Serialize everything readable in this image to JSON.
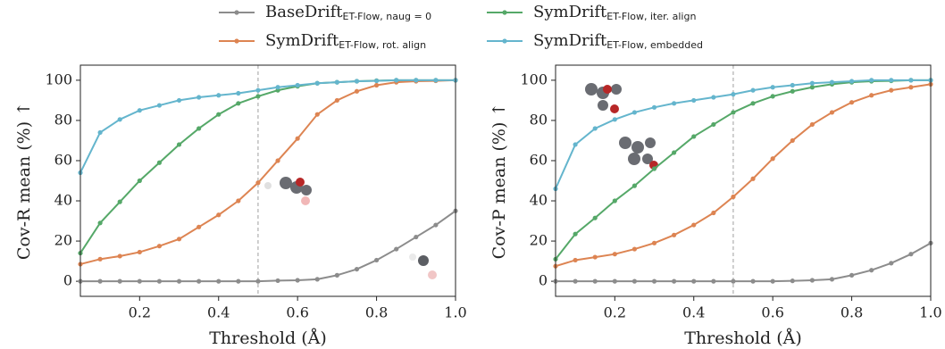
{
  "chart_data": [
    {
      "type": "line",
      "xlabel": "Threshold (Å)",
      "ylabel": "Cov-R mean (%) ↑",
      "x": [
        0.05,
        0.1,
        0.15,
        0.2,
        0.25,
        0.3,
        0.35,
        0.4,
        0.45,
        0.5,
        0.55,
        0.6,
        0.65,
        0.7,
        0.75,
        0.8,
        0.85,
        0.9,
        0.95,
        1.0
      ],
      "xlim": [
        0.05,
        1.0
      ],
      "xticks": [
        0.2,
        0.4,
        0.6,
        0.8,
        {
          "value": 1.0,
          "label": "1.0"
        }
      ],
      "ylim": [
        -7.5,
        107.5
      ],
      "yticks": [
        0,
        20,
        40,
        60,
        80,
        100
      ],
      "vline": 0.5,
      "series": [
        {
          "name": "BaseDrift",
          "subscript": "ET-Flow, naug = 0",
          "color": "#8c8c8c",
          "values": [
            0,
            0,
            0,
            0,
            0,
            0,
            0,
            0,
            0,
            0,
            0.3,
            0.5,
            1,
            3,
            6,
            10.5,
            16,
            22,
            28,
            35
          ]
        },
        {
          "name": "SymDrift",
          "subscript": "ET-Flow, iter. align",
          "color": "#55a868",
          "values": [
            14,
            29,
            39.5,
            50,
            59,
            68,
            76,
            83,
            88.5,
            92,
            95,
            97,
            98.5,
            99,
            99.5,
            99.8,
            100,
            100,
            100,
            100
          ]
        },
        {
          "name": "SymDrift",
          "subscript": "ET-Flow, rot. align",
          "color": "#dd8452",
          "values": [
            8.5,
            11,
            12.5,
            14.5,
            17.5,
            21,
            27,
            33,
            40,
            49,
            60,
            71,
            83,
            90,
            94.5,
            97.5,
            99,
            99.5,
            99.7,
            100
          ]
        },
        {
          "name": "SymDrift",
          "subscript": "ET-Flow, embedded",
          "color": "#64b5cd",
          "values": [
            54,
            74,
            80.5,
            85,
            87.5,
            90,
            91.5,
            92.5,
            93.5,
            95,
            96.5,
            97.5,
            98.5,
            99,
            99.5,
            99.7,
            100,
            100,
            100,
            100
          ]
        }
      ]
    },
    {
      "type": "line",
      "xlabel": "Threshold (Å)",
      "ylabel": "Cov-P mean (%) ↑",
      "x": [
        0.05,
        0.1,
        0.15,
        0.2,
        0.25,
        0.3,
        0.35,
        0.4,
        0.45,
        0.5,
        0.55,
        0.6,
        0.65,
        0.7,
        0.75,
        0.8,
        0.85,
        0.9,
        0.95,
        1.0
      ],
      "xlim": [
        0.05,
        1.0
      ],
      "xticks": [
        0.2,
        0.4,
        0.6,
        0.8,
        {
          "value": 1.0,
          "label": "1.0"
        }
      ],
      "ylim": [
        -7.5,
        107.5
      ],
      "yticks": [
        0,
        20,
        40,
        60,
        80,
        100
      ],
      "vline": 0.5,
      "series": [
        {
          "color": "#8c8c8c",
          "values": [
            0,
            0,
            0,
            0,
            0,
            0,
            0,
            0,
            0,
            0,
            0,
            0,
            0.2,
            0.5,
            1,
            3,
            5.5,
            9,
            13.5,
            19
          ]
        },
        {
          "color": "#55a868",
          "values": [
            11,
            23.5,
            31.5,
            40,
            47.5,
            56,
            64,
            72,
            78,
            84,
            88.5,
            92,
            94.5,
            96.5,
            98,
            99,
            99.5,
            99.7,
            100,
            100
          ]
        },
        {
          "color": "#dd8452",
          "values": [
            7.5,
            10.5,
            12,
            13.5,
            16,
            19,
            23,
            28,
            34,
            42,
            51,
            61,
            70,
            78,
            84,
            89,
            92.5,
            95,
            96.5,
            98
          ]
        },
        {
          "color": "#64b5cd",
          "values": [
            46,
            68,
            76,
            80.5,
            84,
            86.5,
            88.5,
            90,
            91.5,
            93,
            95,
            96.5,
            97.5,
            98.5,
            99,
            99.5,
            100,
            100,
            100,
            100
          ]
        }
      ]
    }
  ]
}
